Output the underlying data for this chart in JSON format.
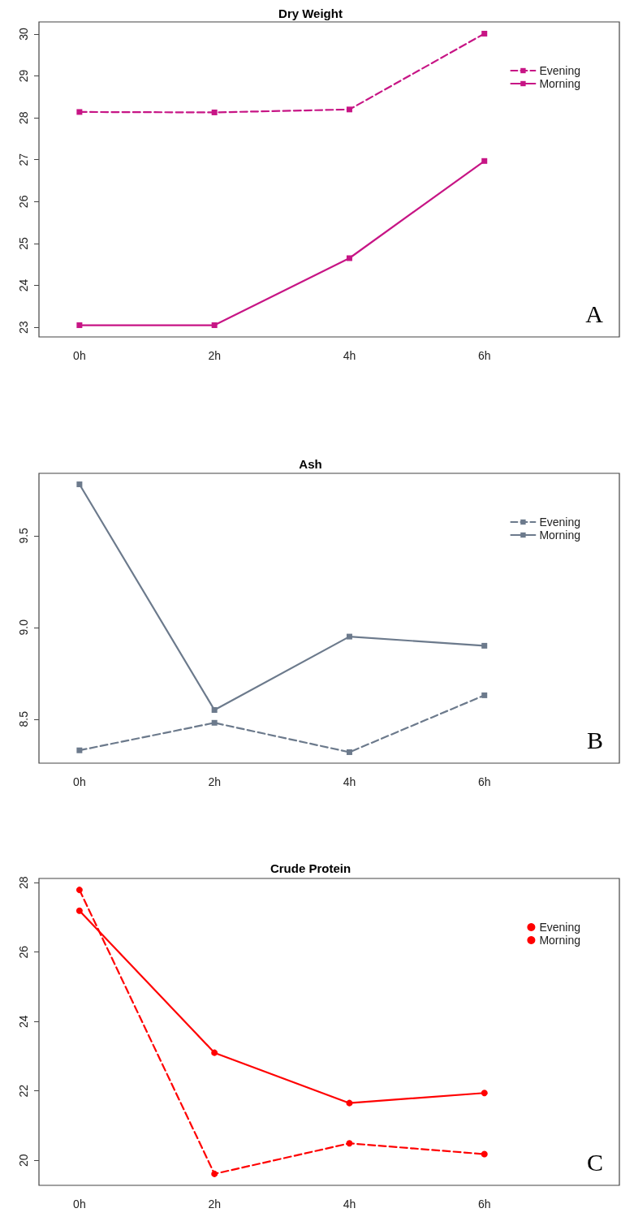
{
  "chart_data": [
    {
      "type": "line",
      "title": "Dry Weight",
      "x": [
        0,
        2,
        4,
        6
      ],
      "xlim": [
        -0.6,
        8
      ],
      "xticks": [
        {
          "value": 0,
          "label": "0h"
        },
        {
          "value": 2,
          "label": "2h"
        },
        {
          "value": 4,
          "label": "4h"
        },
        {
          "value": 6,
          "label": "6h"
        }
      ],
      "ylim": [
        22.77,
        30.29
      ],
      "yticks": [
        23,
        24,
        25,
        26,
        27,
        28,
        29,
        30
      ],
      "marker": "square",
      "legend": "top right",
      "annotations": [
        "A"
      ],
      "series": [
        {
          "name": "Evening",
          "color": "#c71585",
          "line_style": "dashed",
          "values": [
            28.14,
            28.13,
            28.2,
            30.01
          ]
        },
        {
          "name": "Morning",
          "color": "#c71585",
          "line_style": "solid",
          "values": [
            23.05,
            23.05,
            24.65,
            26.97
          ]
        }
      ]
    },
    {
      "type": "line",
      "title": "Ash",
      "x": [
        0,
        2,
        4,
        6
      ],
      "xlim": [
        -0.6,
        8
      ],
      "xticks": [
        {
          "value": 0,
          "label": "0h"
        },
        {
          "value": 2,
          "label": "2h"
        },
        {
          "value": 4,
          "label": "4h"
        },
        {
          "value": 6,
          "label": "6h"
        }
      ],
      "ylim": [
        8.26,
        9.84
      ],
      "yticks": [
        8.5,
        {
          "value": 9,
          "label": "9.0"
        },
        9.5
      ],
      "marker": "square",
      "legend": "top right",
      "annotations": [
        "B"
      ],
      "series": [
        {
          "name": "Evening",
          "color": "#6c7a8c",
          "line_style": "dashed",
          "values": [
            8.33,
            8.48,
            8.32,
            8.63
          ]
        },
        {
          "name": "Morning",
          "color": "#6c7a8c",
          "line_style": "solid",
          "values": [
            9.78,
            8.55,
            8.95,
            8.9
          ]
        }
      ]
    },
    {
      "type": "line",
      "title": "Crude Protein",
      "x": [
        0,
        2,
        4,
        6
      ],
      "xlim": [
        -0.6,
        8
      ],
      "xticks": [
        {
          "value": 0,
          "label": "0h"
        },
        {
          "value": 2,
          "label": "2h"
        },
        {
          "value": 4,
          "label": "4h"
        },
        {
          "value": 6,
          "label": "6h"
        }
      ],
      "ylim": [
        19.28,
        28.12
      ],
      "yticks": [
        20,
        22,
        24,
        26,
        28
      ],
      "marker": "circle",
      "legend": "top right",
      "annotations": [
        "C"
      ],
      "series": [
        {
          "name": "Evening",
          "color": "#ff0000",
          "line_style": "dashed",
          "values": [
            27.79,
            19.61,
            20.49,
            20.18
          ]
        },
        {
          "name": "Morning",
          "color": "#ff0000",
          "line_style": "solid",
          "values": [
            27.19,
            23.1,
            21.65,
            21.94
          ]
        }
      ]
    }
  ]
}
